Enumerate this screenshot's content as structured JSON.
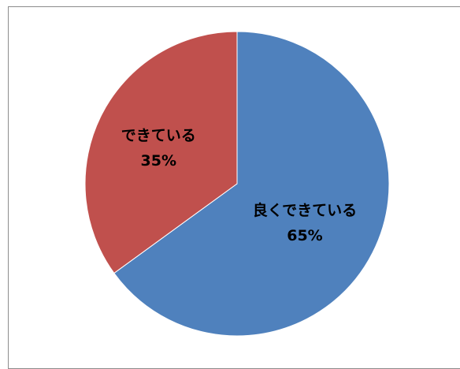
{
  "chart_data": {
    "type": "pie",
    "categories": [
      "良くできている",
      "できている"
    ],
    "values": [
      65,
      35
    ],
    "colors": [
      "#4f81bd",
      "#c0504d"
    ],
    "labels": [
      {
        "name": "良くできている",
        "percent": "65%"
      },
      {
        "name": "できている",
        "percent": "35%"
      }
    ],
    "title": "",
    "legend": "none"
  }
}
